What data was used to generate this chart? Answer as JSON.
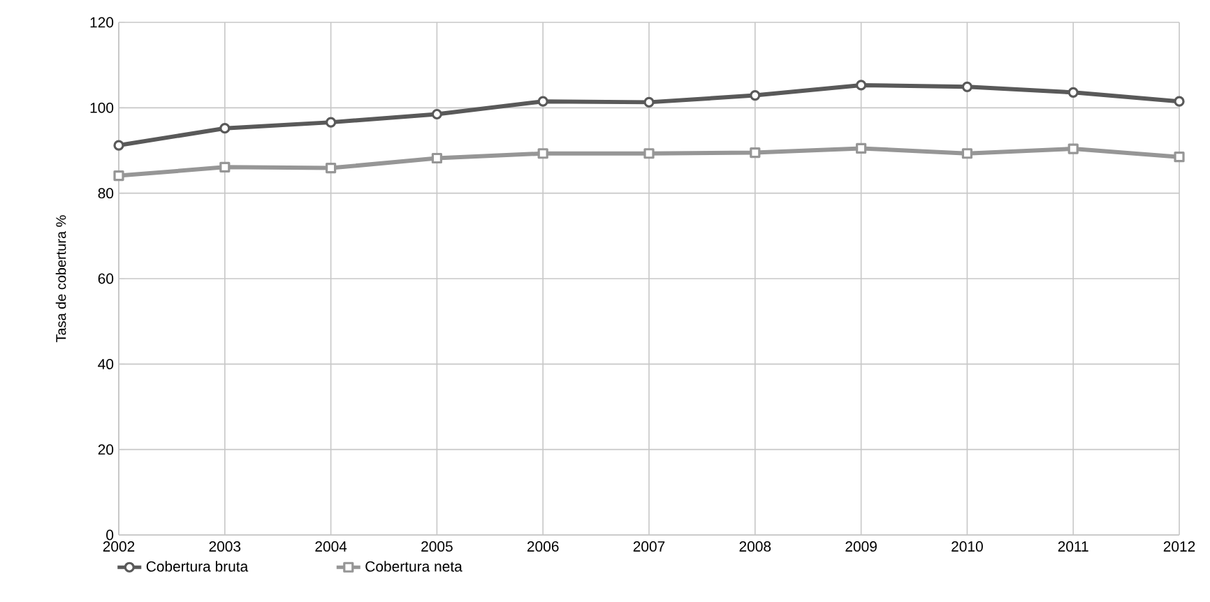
{
  "chart_data": {
    "type": "line",
    "ylabel": "Tasa de cobertura %",
    "x": [
      2002,
      2003,
      2004,
      2005,
      2006,
      2007,
      2008,
      2009,
      2010,
      2011,
      2012
    ],
    "series": [
      {
        "name": "Cobertura bruta",
        "color": "#595959",
        "marker": "circle",
        "values": [
          91.2,
          95.2,
          96.6,
          98.5,
          101.5,
          101.3,
          102.9,
          105.3,
          104.9,
          103.6,
          101.5
        ]
      },
      {
        "name": "Cobertura neta",
        "color": "#969696",
        "marker": "square",
        "values": [
          84.1,
          86.1,
          85.9,
          88.2,
          89.3,
          89.3,
          89.5,
          90.5,
          89.3,
          90.4,
          88.5
        ]
      }
    ],
    "xlim": [
      2002,
      2012
    ],
    "xticks": [
      2002,
      2003,
      2004,
      2005,
      2006,
      2007,
      2008,
      2009,
      2010,
      2011,
      2012
    ],
    "ylim": [
      0,
      120
    ],
    "yticks": [
      0,
      20,
      40,
      60,
      80,
      100,
      120
    ],
    "grid": true,
    "legend": "bottom left",
    "line_style": "solid"
  }
}
